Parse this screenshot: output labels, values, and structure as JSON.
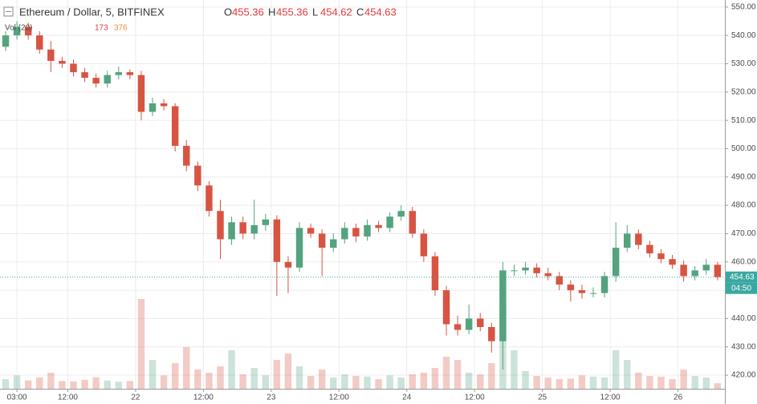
{
  "chart_data": {
    "type": "candlestick",
    "title": "Ethereum / Dollar, 5, BITFINEX",
    "ohlc_labels": [
      {
        "key": "O",
        "value": "455.36"
      },
      {
        "key": "H",
        "value": "455.36"
      },
      {
        "key": "L",
        "value": "454.62"
      },
      {
        "key": "C",
        "value": "454.63"
      }
    ],
    "volume_title": "Vol (20)",
    "volume_value": "173",
    "volume_ma": "376",
    "last_price": 454.63,
    "last_price_label": "454.63",
    "countdown": "04:50",
    "up_color": "#53a37e",
    "down_color": "#d75442",
    "ylim": [
      415.2,
      552.5
    ],
    "yticks": [
      {
        "value": 420,
        "label": "420.00"
      },
      {
        "value": 430,
        "label": "430.00"
      },
      {
        "value": 440,
        "label": "440.00"
      },
      {
        "value": 450,
        "label": "450.00"
      },
      {
        "value": 460,
        "label": "460.00"
      },
      {
        "value": 470,
        "label": "470.00"
      },
      {
        "value": 480,
        "label": "480.00"
      },
      {
        "value": 490,
        "label": "490.00"
      },
      {
        "value": 500,
        "label": "500.00"
      },
      {
        "value": 510,
        "label": "510.00"
      },
      {
        "value": 520,
        "label": "520.00"
      },
      {
        "value": 530,
        "label": "530.00"
      },
      {
        "value": 540,
        "label": "540.00"
      },
      {
        "value": 550,
        "label": "550.00"
      }
    ],
    "xlim": [
      0,
      128.3
    ],
    "xticks": [
      {
        "value": 3,
        "label": "03:00"
      },
      {
        "value": 12,
        "label": "12:00"
      },
      {
        "value": 24,
        "label": "22"
      },
      {
        "value": 36,
        "label": "12:00"
      },
      {
        "value": 48,
        "label": "23"
      },
      {
        "value": 60,
        "label": "12:00"
      },
      {
        "value": 72,
        "label": "24"
      },
      {
        "value": 84,
        "label": "12:00"
      },
      {
        "value": 96,
        "label": "25"
      },
      {
        "value": 108,
        "label": "12:00"
      },
      {
        "value": 120,
        "label": "26"
      }
    ],
    "grid": true,
    "x": [
      0,
      2,
      4,
      6,
      8,
      10,
      12,
      14,
      16,
      18,
      20,
      22,
      24,
      26,
      28,
      30,
      32,
      34,
      36,
      38,
      40,
      42,
      44,
      46,
      48,
      50,
      52,
      54,
      56,
      58,
      60,
      62,
      64,
      66,
      68,
      70,
      72,
      74,
      76,
      78,
      80,
      82,
      84,
      86,
      88,
      90,
      92,
      94,
      96,
      98,
      100,
      102,
      104,
      106,
      108,
      110,
      112,
      114,
      116,
      118,
      120,
      122,
      124,
      126
    ],
    "open": [
      536,
      540,
      543,
      540,
      535,
      531,
      530,
      527,
      525,
      523,
      526,
      527,
      526,
      513,
      516,
      515,
      501,
      494,
      487,
      478,
      468,
      474,
      470,
      473,
      475,
      460,
      458,
      472,
      470,
      465,
      468,
      472,
      469,
      473,
      472,
      476,
      478,
      470,
      462,
      450,
      438,
      436,
      440,
      437,
      432,
      457,
      457,
      458,
      456,
      455,
      452,
      450,
      449,
      449,
      455,
      465,
      470,
      466,
      463,
      461,
      459,
      455,
      457,
      459
    ],
    "high": [
      541.5,
      545,
      544.5,
      541.5,
      538,
      532.5,
      531.5,
      528.5,
      526.5,
      527.5,
      529,
      528,
      527.5,
      518,
      517.5,
      516,
      503,
      495.5,
      488.5,
      482,
      476,
      476,
      482,
      477,
      476.5,
      462,
      474,
      473.5,
      471.5,
      470,
      474,
      473.5,
      475,
      474.5,
      477.5,
      480,
      479.5,
      471.5,
      463.5,
      451.5,
      441,
      445,
      442,
      438.5,
      460,
      459,
      460,
      459.5,
      458,
      456.5,
      453.5,
      452,
      451,
      456.5,
      474,
      473,
      471.5,
      467.5,
      464.5,
      462.5,
      460.5,
      458.5,
      461,
      460
    ],
    "low": [
      534.5,
      538.5,
      538.5,
      533.5,
      527,
      528.5,
      525.5,
      523.5,
      521.5,
      521.5,
      524.5,
      524.5,
      510,
      511.5,
      513.5,
      499,
      492,
      485,
      476,
      461,
      466,
      468,
      468,
      471,
      448,
      449,
      456.5,
      468.5,
      455,
      463.5,
      466.5,
      467,
      467.5,
      470.5,
      470.5,
      474.5,
      468.5,
      460,
      448,
      434,
      434,
      434.5,
      435.5,
      428,
      422,
      455,
      455.5,
      454.5,
      453.5,
      450,
      446,
      447,
      447.5,
      447.5,
      453,
      463.5,
      464.5,
      461.5,
      459.5,
      457.5,
      453,
      453.5,
      455.5,
      453.5
    ],
    "close": [
      540,
      543,
      540,
      535,
      531,
      530,
      527,
      525,
      523,
      526,
      527,
      526,
      513,
      516,
      515,
      501,
      494,
      487,
      478,
      468,
      474,
      470,
      473,
      475,
      460,
      458,
      472,
      470,
      465,
      468,
      472,
      469,
      473,
      472,
      476,
      478,
      470,
      462,
      450,
      438,
      436,
      440,
      437,
      432,
      457,
      457,
      458,
      456,
      455,
      452,
      450,
      449,
      449,
      455,
      465,
      470,
      466,
      463,
      461,
      459,
      455,
      457,
      459,
      454.63
    ],
    "volume": [
      300,
      420,
      260,
      350,
      500,
      240,
      230,
      280,
      360,
      260,
      220,
      240,
      2800,
      900,
      420,
      800,
      1300,
      600,
      500,
      700,
      1200,
      450,
      650,
      420,
      900,
      1100,
      700,
      400,
      600,
      350,
      450,
      400,
      380,
      300,
      420,
      350,
      450,
      500,
      650,
      1000,
      900,
      500,
      450,
      800,
      2600,
      1200,
      550,
      400,
      350,
      300,
      320,
      420,
      380,
      350,
      1200,
      900,
      500,
      400,
      380,
      300,
      600,
      400,
      350,
      173
    ]
  }
}
